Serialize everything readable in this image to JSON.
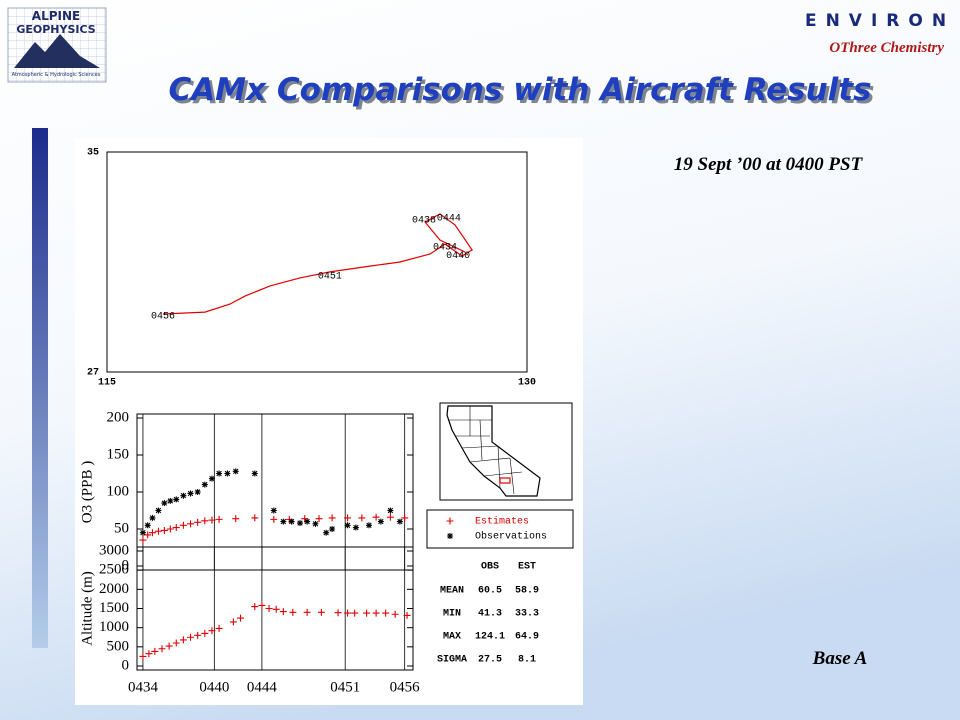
{
  "logo": {
    "name_lines": [
      "ALPINE",
      "GEOPHYSICS"
    ],
    "tagline": "Atmospheric & Hydrologic Sciences"
  },
  "brand": "ENVIRON",
  "brand_subtitle": "OThree Chemistry",
  "title": "CAMx Comparisons with Aircraft Results",
  "subtitle": "19 Sept ’00 at 0400 PST",
  "footer_label": "Base A",
  "chart_data": [
    {
      "type": "line",
      "color": "#e00000",
      "x": [
        117.0,
        118.5,
        119.39,
        119.93,
        120.82,
        121.89,
        122.96,
        124.39,
        125.46,
        126.54,
        127.07,
        127.68,
        128.04,
        127.43,
        126.89,
        126.36,
        126.89,
        127.79
      ],
      "values": [
        29.11,
        29.18,
        29.47,
        29.76,
        30.13,
        30.42,
        30.64,
        30.85,
        31.0,
        31.29,
        31.65,
        31.22,
        31.44,
        32.35,
        32.75,
        32.45,
        31.8,
        31.36
      ],
      "xlim": [
        115,
        130
      ],
      "ylim": [
        27,
        35
      ],
      "xticks": [
        115,
        130
      ],
      "yticks": [
        27,
        35
      ],
      "annotations": [
        {
          "text": "0456",
          "x": 117.0,
          "y": 29.04
        },
        {
          "text": "0451",
          "x": 122.96,
          "y": 30.49
        },
        {
          "text": "0438",
          "x": 126.32,
          "y": 32.53
        },
        {
          "text": "0444",
          "x": 127.21,
          "y": 32.6
        },
        {
          "text": "0434",
          "x": 127.07,
          "y": 31.55
        },
        {
          "text": "0440",
          "x": 127.54,
          "y": 31.25
        }
      ]
    },
    {
      "type": "scatter",
      "y_label": "O3 (PPB )",
      "grid": "x",
      "xtick_labels": false,
      "legend": "right",
      "xlim": [
        33.5,
        56.7
      ],
      "ylim": [
        0,
        200
      ],
      "xticks": [
        34,
        40,
        44,
        51,
        56
      ],
      "yticks": [
        0,
        50,
        100,
        150,
        200
      ],
      "series": [
        {
          "name": "Estimates",
          "color": "#e00000",
          "marker": "plus",
          "x": [
            34.0,
            34.4,
            34.8,
            35.3,
            35.8,
            36.3,
            36.8,
            37.4,
            38.0,
            38.6,
            39.2,
            39.8,
            40.4,
            41.8,
            43.4,
            45.0,
            46.3,
            47.6,
            48.8,
            49.9,
            51.2,
            52.4,
            53.6,
            54.8,
            56.0
          ],
          "values": [
            35,
            42,
            45,
            47,
            48,
            50,
            52,
            55,
            57,
            59,
            61,
            62,
            63,
            64,
            65,
            63,
            63,
            64,
            64,
            65,
            65,
            65,
            66,
            66,
            65
          ]
        },
        {
          "name": "Observations",
          "color": "#000000",
          "marker": "asterisk",
          "x": [
            34.0,
            34.4,
            34.8,
            35.3,
            35.8,
            36.3,
            36.8,
            37.4,
            38.0,
            38.6,
            39.2,
            39.8,
            40.4,
            41.1,
            41.8,
            43.4,
            45.0,
            45.8,
            46.5,
            47.2,
            47.8,
            48.5,
            49.4,
            49.9,
            51.2,
            51.9,
            53.0,
            54.0,
            54.8,
            55.6
          ],
          "values": [
            45,
            55,
            65,
            75,
            85,
            88,
            90,
            95,
            98,
            100,
            110,
            118,
            125,
            125,
            128,
            125,
            75,
            60,
            60,
            58,
            60,
            57,
            45,
            50,
            55,
            52,
            55,
            60,
            75,
            60
          ]
        }
      ]
    },
    {
      "type": "scatter",
      "y_label": "Altitude (m)",
      "grid": "x",
      "color": "#e00000",
      "marker": "plus",
      "xlim": [
        33.5,
        56.7
      ],
      "ylim": [
        0,
        3000
      ],
      "xticks": [
        {
          "value": 34,
          "label": "0434"
        },
        {
          "value": 40,
          "label": "0440"
        },
        {
          "value": 44,
          "label": "0444"
        },
        {
          "value": 51,
          "label": "0451"
        },
        {
          "value": 56,
          "label": "0456"
        }
      ],
      "yticks": [
        0,
        500,
        1000,
        1500,
        2000,
        2500,
        3000
      ],
      "x": [
        34.0,
        34.5,
        35.0,
        35.6,
        36.2,
        36.8,
        37.4,
        38.0,
        38.6,
        39.2,
        39.8,
        40.4,
        41.6,
        42.2,
        43.4,
        44.0,
        44.6,
        45.2,
        45.8,
        46.6,
        47.8,
        49.0,
        50.4,
        51.2,
        51.8,
        52.8,
        53.6,
        54.4,
        55.2,
        56.2
      ],
      "values": [
        250,
        320,
        380,
        450,
        520,
        600,
        680,
        750,
        800,
        850,
        920,
        980,
        1150,
        1250,
        1550,
        1580,
        1500,
        1480,
        1420,
        1400,
        1400,
        1400,
        1390,
        1380,
        1380,
        1380,
        1380,
        1380,
        1350,
        1320
      ]
    }
  ],
  "stats_table": {
    "columns": [
      "OBS",
      "EST"
    ],
    "rows": [
      [
        "MEAN",
        60.5,
        58.9
      ],
      [
        "MIN",
        41.3,
        33.3
      ],
      [
        "MAX",
        124.1,
        64.9
      ],
      [
        "SIGMA",
        27.5,
        8.1
      ]
    ]
  }
}
